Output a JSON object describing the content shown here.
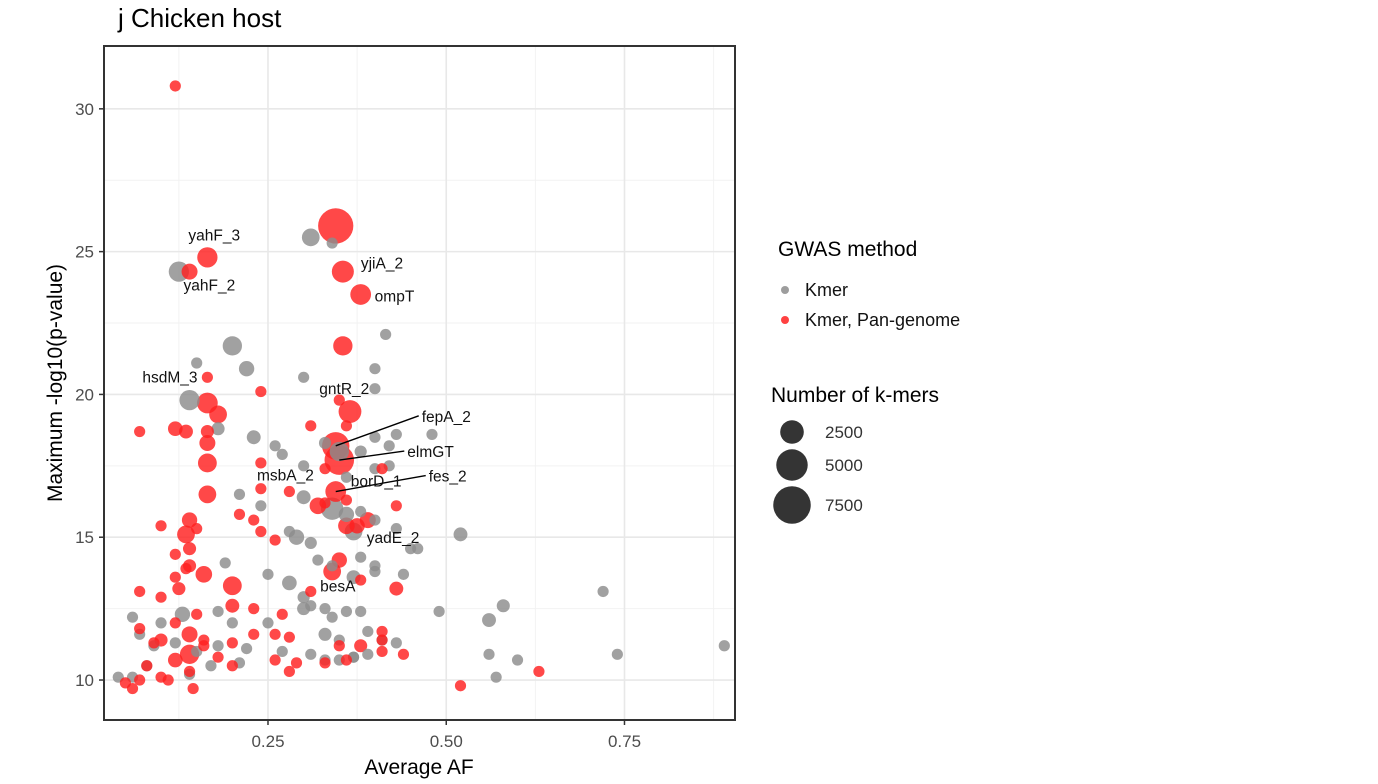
{
  "chart_data": {
    "type": "scatter",
    "title": "j Chicken host",
    "xlabel": "Average AF",
    "ylabel": "Maximum -log10(p-value)",
    "xlim": [
      0.02,
      0.905
    ],
    "ylim": [
      8.6,
      32.2
    ],
    "xticks": [
      0.25,
      0.5,
      0.75
    ],
    "xtick_labels": [
      "0.25",
      "0.50",
      "0.75"
    ],
    "yticks": [
      10,
      15,
      20,
      25,
      30
    ],
    "ytick_labels": [
      "10",
      "15",
      "20",
      "25",
      "30"
    ],
    "grid": true,
    "colors": {
      "kmer": "#8c8c8c",
      "kmer_pan": "#ff2020",
      "frame": "#333333",
      "grid": "#e8e8e8",
      "label_line": "#000000"
    },
    "legend_color": {
      "title": "GWAS method",
      "entries": [
        {
          "label": "Kmer",
          "color": "#8c8c8c"
        },
        {
          "label": "Kmer, Pan-genome",
          "color": "#ff2020"
        }
      ]
    },
    "legend_size": {
      "title": "Number of k-mers",
      "entries": [
        {
          "label": "2500",
          "kmers": 2500
        },
        {
          "label": "5000",
          "kmers": 5000
        },
        {
          "label": "7500",
          "kmers": 7500
        }
      ]
    },
    "series": [
      {
        "name": "Kmer",
        "color": "#8c8c8c",
        "points": [
          [
            0.125,
            24.3,
            1700
          ],
          [
            0.31,
            25.5,
            1200
          ],
          [
            0.34,
            25.3,
            300
          ],
          [
            0.2,
            21.7,
            1500
          ],
          [
            0.22,
            20.9,
            800
          ],
          [
            0.15,
            21.1,
            300
          ],
          [
            0.415,
            22.1,
            300
          ],
          [
            0.4,
            20.9,
            300
          ],
          [
            0.3,
            20.6,
            300
          ],
          [
            0.4,
            20.2,
            300
          ],
          [
            0.14,
            19.8,
            1700
          ],
          [
            0.18,
            18.8,
            500
          ],
          [
            0.23,
            18.5,
            600
          ],
          [
            0.35,
            18.0,
            1500
          ],
          [
            0.33,
            18.3,
            400
          ],
          [
            0.38,
            18.0,
            400
          ],
          [
            0.42,
            18.2,
            300
          ],
          [
            0.4,
            18.5,
            300
          ],
          [
            0.43,
            18.6,
            300
          ],
          [
            0.48,
            18.6,
            300
          ],
          [
            0.27,
            17.9,
            300
          ],
          [
            0.26,
            18.2,
            300
          ],
          [
            0.3,
            17.5,
            300
          ],
          [
            0.36,
            17.1,
            300
          ],
          [
            0.4,
            17.4,
            300
          ],
          [
            0.42,
            17.5,
            300
          ],
          [
            0.21,
            16.5,
            300
          ],
          [
            0.24,
            16.1,
            300
          ],
          [
            0.3,
            16.4,
            600
          ],
          [
            0.34,
            16.0,
            2200
          ],
          [
            0.36,
            15.8,
            800
          ],
          [
            0.38,
            15.9,
            300
          ],
          [
            0.4,
            15.6,
            300
          ],
          [
            0.43,
            15.3,
            300
          ],
          [
            0.28,
            15.2,
            300
          ],
          [
            0.29,
            15.0,
            800
          ],
          [
            0.31,
            14.8,
            400
          ],
          [
            0.37,
            15.2,
            1200
          ],
          [
            0.45,
            14.6,
            300
          ],
          [
            0.46,
            14.6,
            300
          ],
          [
            0.52,
            15.1,
            600
          ],
          [
            0.32,
            14.2,
            300
          ],
          [
            0.38,
            14.3,
            300
          ],
          [
            0.4,
            14.0,
            300
          ],
          [
            0.19,
            14.1,
            300
          ],
          [
            0.25,
            13.7,
            300
          ],
          [
            0.28,
            13.4,
            700
          ],
          [
            0.34,
            14.0,
            300
          ],
          [
            0.37,
            13.6,
            600
          ],
          [
            0.4,
            13.8,
            300
          ],
          [
            0.44,
            13.7,
            300
          ],
          [
            0.3,
            12.9,
            400
          ],
          [
            0.31,
            12.6,
            300
          ],
          [
            0.3,
            12.5,
            500
          ],
          [
            0.33,
            12.5,
            300
          ],
          [
            0.36,
            12.4,
            300
          ],
          [
            0.38,
            12.4,
            300
          ],
          [
            0.34,
            12.2,
            300
          ],
          [
            0.13,
            12.3,
            800
          ],
          [
            0.1,
            12.0,
            300
          ],
          [
            0.06,
            12.2,
            300
          ],
          [
            0.18,
            12.4,
            300
          ],
          [
            0.2,
            12.0,
            300
          ],
          [
            0.25,
            12.0,
            300
          ],
          [
            0.33,
            11.6,
            500
          ],
          [
            0.35,
            11.4,
            300
          ],
          [
            0.39,
            11.7,
            300
          ],
          [
            0.41,
            11.4,
            300
          ],
          [
            0.43,
            11.3,
            300
          ],
          [
            0.49,
            12.4,
            300
          ],
          [
            0.56,
            12.1,
            600
          ],
          [
            0.58,
            12.6,
            500
          ],
          [
            0.72,
            13.1,
            300
          ],
          [
            0.07,
            11.6,
            300
          ],
          [
            0.09,
            11.2,
            300
          ],
          [
            0.12,
            11.3,
            300
          ],
          [
            0.15,
            11.0,
            300
          ],
          [
            0.18,
            11.2,
            300
          ],
          [
            0.22,
            11.1,
            300
          ],
          [
            0.27,
            11.0,
            300
          ],
          [
            0.31,
            10.9,
            300
          ],
          [
            0.33,
            10.7,
            300
          ],
          [
            0.35,
            10.7,
            300
          ],
          [
            0.37,
            10.8,
            300
          ],
          [
            0.39,
            10.9,
            300
          ],
          [
            0.56,
            10.9,
            300
          ],
          [
            0.6,
            10.7,
            300
          ],
          [
            0.74,
            10.9,
            300
          ],
          [
            0.89,
            11.2,
            300
          ],
          [
            0.04,
            10.1,
            300
          ],
          [
            0.06,
            10.1,
            300
          ],
          [
            0.08,
            10.5,
            300
          ],
          [
            0.14,
            10.2,
            300
          ],
          [
            0.17,
            10.5,
            300
          ],
          [
            0.21,
            10.6,
            300
          ],
          [
            0.57,
            10.1,
            300
          ],
          [
            0.37,
            10.8,
            300
          ]
        ]
      },
      {
        "name": "Kmer, Pan-genome",
        "color": "#ff2020",
        "points": [
          [
            0.12,
            30.8,
            300
          ],
          [
            0.345,
            25.9,
            6500
          ],
          [
            0.165,
            24.8,
            1700
          ],
          [
            0.14,
            24.3,
            900
          ],
          [
            0.355,
            24.3,
            2100
          ],
          [
            0.38,
            23.5,
            1800
          ],
          [
            0.355,
            21.7,
            1500
          ],
          [
            0.165,
            20.6,
            300
          ],
          [
            0.24,
            20.1,
            300
          ],
          [
            0.35,
            19.8,
            300
          ],
          [
            0.165,
            19.7,
            1800
          ],
          [
            0.18,
            19.3,
            1200
          ],
          [
            0.365,
            19.4,
            2300
          ],
          [
            0.31,
            18.9,
            300
          ],
          [
            0.36,
            18.9,
            300
          ],
          [
            0.07,
            18.7,
            300
          ],
          [
            0.12,
            18.8,
            700
          ],
          [
            0.135,
            18.7,
            600
          ],
          [
            0.165,
            18.7,
            500
          ],
          [
            0.165,
            18.3,
            900
          ],
          [
            0.345,
            18.2,
            3600
          ],
          [
            0.35,
            17.7,
            4300
          ],
          [
            0.165,
            17.6,
            1400
          ],
          [
            0.24,
            17.6,
            300
          ],
          [
            0.33,
            17.4,
            300
          ],
          [
            0.41,
            17.4,
            300
          ],
          [
            0.24,
            16.7,
            300
          ],
          [
            0.345,
            16.6,
            1800
          ],
          [
            0.165,
            16.5,
            1200
          ],
          [
            0.28,
            16.6,
            300
          ],
          [
            0.33,
            16.2,
            300
          ],
          [
            0.32,
            16.1,
            1000
          ],
          [
            0.36,
            16.3,
            300
          ],
          [
            0.43,
            16.1,
            300
          ],
          [
            0.14,
            15.6,
            800
          ],
          [
            0.21,
            15.8,
            300
          ],
          [
            0.23,
            15.6,
            300
          ],
          [
            0.36,
            15.4,
            1000
          ],
          [
            0.375,
            15.4,
            800
          ],
          [
            0.39,
            15.6,
            900
          ],
          [
            0.1,
            15.4,
            300
          ],
          [
            0.135,
            15.1,
            1200
          ],
          [
            0.15,
            15.3,
            300
          ],
          [
            0.24,
            15.2,
            300
          ],
          [
            0.26,
            14.9,
            300
          ],
          [
            0.14,
            14.6,
            500
          ],
          [
            0.35,
            14.2,
            800
          ],
          [
            0.12,
            14.4,
            300
          ],
          [
            0.14,
            14.0,
            500
          ],
          [
            0.135,
            13.9,
            300
          ],
          [
            0.16,
            13.7,
            1000
          ],
          [
            0.2,
            13.3,
            1400
          ],
          [
            0.12,
            13.6,
            300
          ],
          [
            0.34,
            13.8,
            1200
          ],
          [
            0.31,
            13.1,
            300
          ],
          [
            0.38,
            13.5,
            300
          ],
          [
            0.43,
            13.2,
            600
          ],
          [
            0.07,
            13.1,
            300
          ],
          [
            0.125,
            13.2,
            500
          ],
          [
            0.1,
            12.9,
            300
          ],
          [
            0.2,
            12.6,
            600
          ],
          [
            0.23,
            12.5,
            300
          ],
          [
            0.27,
            12.3,
            300
          ],
          [
            0.15,
            12.3,
            300
          ],
          [
            0.07,
            11.8,
            300
          ],
          [
            0.12,
            12.0,
            300
          ],
          [
            0.14,
            11.6,
            900
          ],
          [
            0.16,
            11.4,
            300
          ],
          [
            0.23,
            11.6,
            300
          ],
          [
            0.26,
            11.6,
            300
          ],
          [
            0.28,
            11.5,
            300
          ],
          [
            0.35,
            11.2,
            300
          ],
          [
            0.38,
            11.2,
            500
          ],
          [
            0.41,
            11.4,
            300
          ],
          [
            0.41,
            11.7,
            300
          ],
          [
            0.09,
            11.3,
            300
          ],
          [
            0.1,
            11.4,
            500
          ],
          [
            0.16,
            11.2,
            300
          ],
          [
            0.2,
            11.3,
            300
          ],
          [
            0.14,
            10.9,
            1500
          ],
          [
            0.12,
            10.7,
            700
          ],
          [
            0.18,
            10.8,
            300
          ],
          [
            0.2,
            10.5,
            300
          ],
          [
            0.26,
            10.7,
            300
          ],
          [
            0.29,
            10.6,
            300
          ],
          [
            0.33,
            10.6,
            300
          ],
          [
            0.36,
            10.7,
            300
          ],
          [
            0.41,
            11.0,
            300
          ],
          [
            0.44,
            10.9,
            300
          ],
          [
            0.06,
            9.7,
            300
          ],
          [
            0.05,
            9.9,
            300
          ],
          [
            0.1,
            10.1,
            300
          ],
          [
            0.145,
            9.7,
            300
          ],
          [
            0.14,
            10.3,
            300
          ],
          [
            0.28,
            10.3,
            300
          ],
          [
            0.52,
            9.8,
            300
          ],
          [
            0.63,
            10.3,
            300
          ],
          [
            0.07,
            10.0,
            300
          ],
          [
            0.11,
            10.0,
            300
          ],
          [
            0.08,
            10.5,
            300
          ]
        ]
      }
    ],
    "annotations": [
      {
        "text": "yahF_3",
        "x": 0.165,
        "y": 24.8
      },
      {
        "text": "yahF_2",
        "x": 0.14,
        "y": 24.3
      },
      {
        "text": "yjiA_2",
        "x": 0.355,
        "y": 24.3
      },
      {
        "text": "ompT",
        "x": 0.38,
        "y": 23.5
      },
      {
        "text": "hsdM_3",
        "x": 0.165,
        "y": 20.6
      },
      {
        "text": "gntR_2",
        "x": 0.35,
        "y": 19.8
      },
      {
        "text": "fepA_2",
        "x": 0.345,
        "y": 18.2
      },
      {
        "text": "elmGT",
        "x": 0.35,
        "y": 17.7
      },
      {
        "text": "msbA_2",
        "x": 0.33,
        "y": 17.4
      },
      {
        "text": "fes_2",
        "x": 0.345,
        "y": 16.6
      },
      {
        "text": "borD_1",
        "x": 0.345,
        "y": 16.6
      },
      {
        "text": "yadE_2",
        "x": 0.39,
        "y": 15.6
      },
      {
        "text": "besA",
        "x": 0.34,
        "y": 13.8
      }
    ]
  }
}
